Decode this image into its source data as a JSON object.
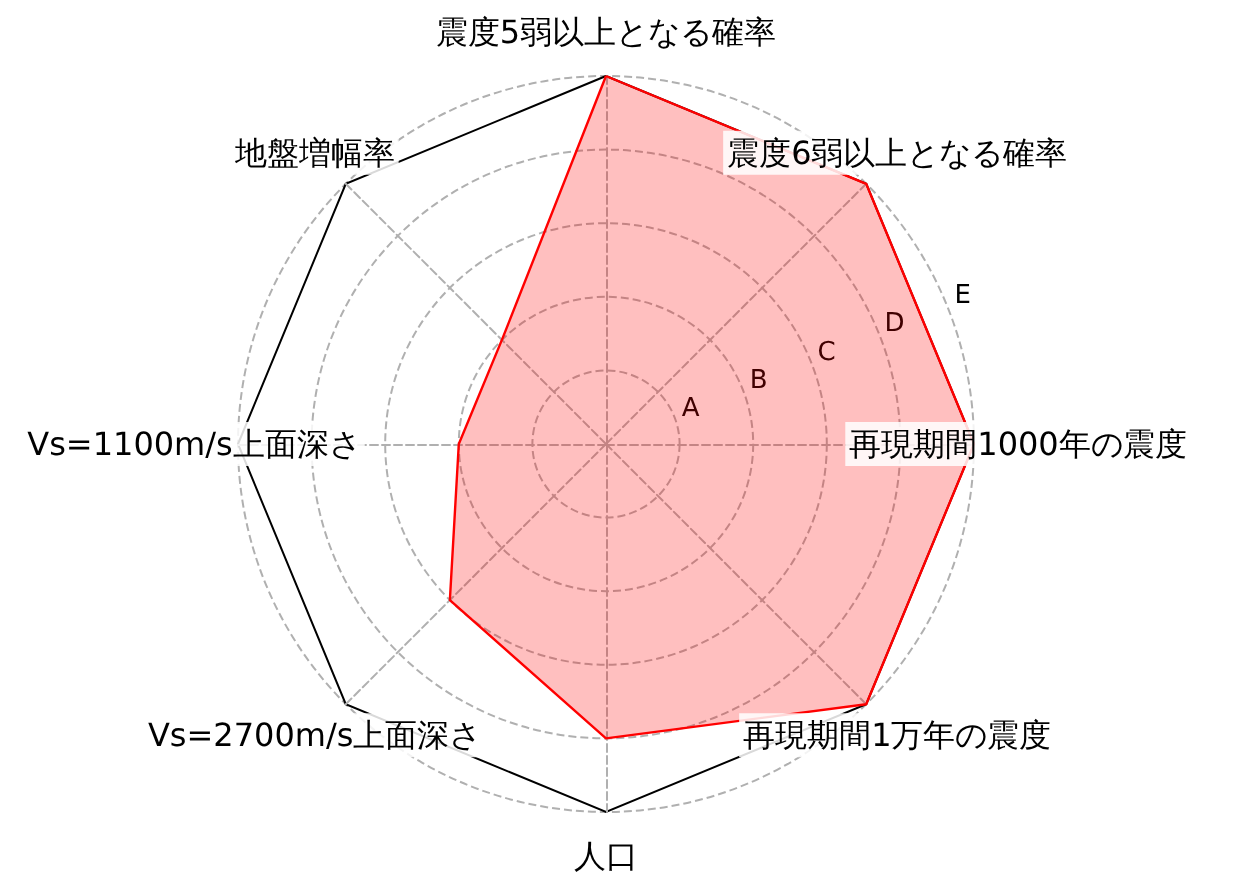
{
  "chart_data": {
    "type": "radar",
    "categories": [
      "震度5弱以上となる確率",
      "震度6弱以上となる確率",
      "再現期間1000年の震度",
      "再現期間1万年の震度",
      "人口",
      "Vs=2700m/s上面深さ",
      "Vs=1100m/s上面深さ",
      "地盤増幅率"
    ],
    "series": [
      {
        "color": "#ff0000",
        "values": [
          5,
          5,
          5,
          5,
          4,
          3,
          2,
          2
        ]
      }
    ],
    "ylim": [
      0,
      5
    ],
    "yticks": [
      {
        "value": 1,
        "label": "A"
      },
      {
        "value": 2,
        "label": "B"
      },
      {
        "value": 3,
        "label": "C"
      },
      {
        "value": 4,
        "label": "D"
      },
      {
        "value": 5,
        "label": "E"
      }
    ],
    "grid": true
  }
}
